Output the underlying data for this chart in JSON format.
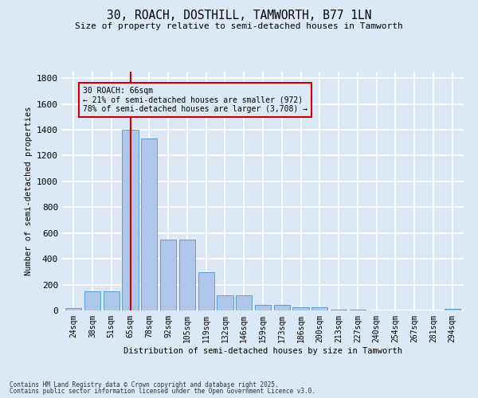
{
  "title1": "30, ROACH, DOSTHILL, TAMWORTH, B77 1LN",
  "title2": "Size of property relative to semi-detached houses in Tamworth",
  "xlabel": "Distribution of semi-detached houses by size in Tamworth",
  "ylabel": "Number of semi-detached properties",
  "categories": [
    "24sqm",
    "38sqm",
    "51sqm",
    "65sqm",
    "78sqm",
    "92sqm",
    "105sqm",
    "119sqm",
    "132sqm",
    "146sqm",
    "159sqm",
    "173sqm",
    "186sqm",
    "200sqm",
    "213sqm",
    "227sqm",
    "240sqm",
    "254sqm",
    "267sqm",
    "281sqm",
    "294sqm"
  ],
  "values": [
    20,
    145,
    145,
    1400,
    1335,
    550,
    550,
    295,
    120,
    120,
    45,
    45,
    25,
    25,
    5,
    5,
    0,
    0,
    0,
    0,
    15
  ],
  "bar_color": "#aec6e8",
  "bar_edge_color": "#5a9fd4",
  "vline_x_index": 3,
  "vline_color": "#cc0000",
  "annotation_text": "30 ROACH: 66sqm\n← 21% of semi-detached houses are smaller (972)\n78% of semi-detached houses are larger (3,708) →",
  "annotation_box_color": "#cc0000",
  "ylim": [
    0,
    1850
  ],
  "yticks": [
    0,
    200,
    400,
    600,
    800,
    1000,
    1200,
    1400,
    1600,
    1800
  ],
  "footnote1": "Contains HM Land Registry data © Crown copyright and database right 2025.",
  "footnote2": "Contains public sector information licensed under the Open Government Licence v3.0.",
  "bg_color": "#dce8f5",
  "grid_color": "#ffffff"
}
